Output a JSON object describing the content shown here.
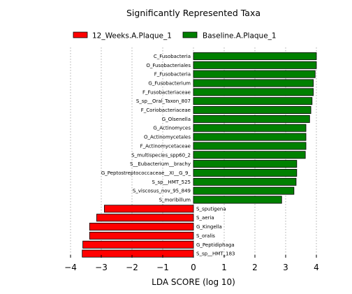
{
  "chart_data": {
    "type": "bar",
    "orientation": "horizontal",
    "title": "Significantly Represented Taxa",
    "xlabel": "LDA SCORE (log 10)",
    "ylabel": "",
    "xlim": [
      -4,
      4
    ],
    "xticks": [
      -4,
      -3,
      -2,
      -1,
      0,
      1,
      2,
      3,
      4
    ],
    "grid": true,
    "legend_position": "top",
    "series": [
      {
        "name": "12_Weeks.A.Plaque_1",
        "color": "#ff0000"
      },
      {
        "name": "Baseline.A.Plaque_1",
        "color": "#008000"
      }
    ],
    "bars": [
      {
        "label": "C_Fusobacteria",
        "value": 4.0,
        "series": "Baseline.A.Plaque_1"
      },
      {
        "label": "O_Fusobacteriales",
        "value": 4.0,
        "series": "Baseline.A.Plaque_1"
      },
      {
        "label": "F_Fusobacteria",
        "value": 3.96,
        "series": "Baseline.A.Plaque_1"
      },
      {
        "label": "G_Fusobacterium",
        "value": 3.9,
        "series": "Baseline.A.Plaque_1"
      },
      {
        "label": "F_Fusobacteriaceae",
        "value": 3.9,
        "series": "Baseline.A.Plaque_1"
      },
      {
        "label": "S_sp__Oral_Taxon_807",
        "value": 3.86,
        "series": "Baseline.A.Plaque_1"
      },
      {
        "label": "F_Coriobacteriaceae",
        "value": 3.82,
        "series": "Baseline.A.Plaque_1"
      },
      {
        "label": "G_Olsenella",
        "value": 3.78,
        "series": "Baseline.A.Plaque_1"
      },
      {
        "label": "G_Actinomyces",
        "value": 3.66,
        "series": "Baseline.A.Plaque_1"
      },
      {
        "label": "O_Actinomycetales",
        "value": 3.66,
        "series": "Baseline.A.Plaque_1"
      },
      {
        "label": "F_Actinomycetaceae",
        "value": 3.66,
        "series": "Baseline.A.Plaque_1"
      },
      {
        "label": "S_multispecies_spp60_2",
        "value": 3.64,
        "series": "Baseline.A.Plaque_1"
      },
      {
        "label": "S__Eubacterium__brachy",
        "value": 3.36,
        "series": "Baseline.A.Plaque_1"
      },
      {
        "label": "G_Peptostreptococcaceae__XI__G_9_",
        "value": 3.36,
        "series": "Baseline.A.Plaque_1"
      },
      {
        "label": "S_sp__HMT_525",
        "value": 3.34,
        "series": "Baseline.A.Plaque_1"
      },
      {
        "label": "S_viscosus_nov_95_849",
        "value": 3.27,
        "series": "Baseline.A.Plaque_1"
      },
      {
        "label": "S_moribillum",
        "value": 2.87,
        "series": "Baseline.A.Plaque_1"
      },
      {
        "label": "S_sputigena",
        "value": -2.9,
        "series": "12_Weeks.A.Plaque_1"
      },
      {
        "label": "S_aeria",
        "value": -3.15,
        "series": "12_Weeks.A.Plaque_1"
      },
      {
        "label": "G_Kingella",
        "value": -3.38,
        "series": "12_Weeks.A.Plaque_1"
      },
      {
        "label": "S_oralis",
        "value": -3.38,
        "series": "12_Weeks.A.Plaque_1"
      },
      {
        "label": "G_Peptidiphaga",
        "value": -3.6,
        "series": "12_Weeks.A.Plaque_1"
      },
      {
        "label": "S_sp__HMT_183",
        "value": -3.62,
        "series": "12_Weeks.A.Plaque_1"
      }
    ]
  }
}
